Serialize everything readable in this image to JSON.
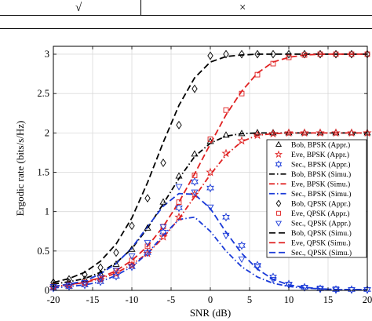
{
  "table_fragment": {
    "cells": [
      "√",
      "×"
    ]
  },
  "chart_data": {
    "type": "line",
    "title": "",
    "xlabel": "SNR (dB)",
    "ylabel": "Ergodic rate (bits/s/Hz)",
    "xlim": [
      -20,
      20
    ],
    "ylim": [
      0,
      3.1
    ],
    "xticks": [
      -20,
      -15,
      -10,
      -5,
      0,
      5,
      10,
      15,
      20
    ],
    "yticks": [
      0,
      0.5,
      1,
      1.5,
      2,
      2.5,
      3
    ],
    "xtick_labels": [
      "-20",
      "-15",
      "-10",
      "-5",
      "0",
      "5",
      "10",
      "15",
      "20"
    ],
    "ytick_labels": [
      "0",
      "0.5",
      "1",
      "1.5",
      "2",
      "2.5",
      "3"
    ],
    "grid": true,
    "legend_position": "right",
    "series": [
      {
        "name": "Bob, BPSK (Appr.)",
        "kind": "marker",
        "marker": "triangle-up",
        "color": "#000000",
        "x": [
          -20,
          -18,
          -16,
          -14,
          -12,
          -10,
          -8,
          -6,
          -4,
          -2,
          0,
          2,
          4,
          6,
          8,
          10,
          12,
          14,
          16,
          18,
          20
        ],
        "y": [
          0.07,
          0.1,
          0.14,
          0.21,
          0.33,
          0.52,
          0.79,
          1.12,
          1.45,
          1.73,
          1.89,
          1.97,
          1.99,
          2.0,
          2.0,
          2.0,
          2.0,
          2.0,
          2.0,
          2.0,
          2.0
        ]
      },
      {
        "name": "Eve, BPSK (Appr.)",
        "kind": "marker",
        "marker": "star",
        "color": "#e02020",
        "x": [
          -20,
          -18,
          -16,
          -14,
          -12,
          -10,
          -8,
          -6,
          -4,
          -2,
          0,
          2,
          4,
          6,
          8,
          10,
          12,
          14,
          16,
          18,
          20
        ],
        "y": [
          0.04,
          0.06,
          0.09,
          0.14,
          0.21,
          0.32,
          0.47,
          0.68,
          0.93,
          1.22,
          1.5,
          1.74,
          1.9,
          1.97,
          1.99,
          2.0,
          2.0,
          2.0,
          2.0,
          2.0,
          2.0
        ]
      },
      {
        "name": "Sec., BPSK (Appr.)",
        "kind": "marker",
        "marker": "hexagram",
        "color": "#1a3ad8",
        "x": [
          -20,
          -18,
          -16,
          -14,
          -12,
          -10,
          -8,
          -6,
          -4,
          -2,
          0,
          2,
          4,
          6,
          8,
          10,
          12,
          14,
          16,
          18,
          20
        ],
        "y": [
          0.03,
          0.05,
          0.07,
          0.11,
          0.18,
          0.3,
          0.48,
          0.74,
          1.05,
          1.38,
          1.3,
          0.93,
          0.57,
          0.32,
          0.17,
          0.08,
          0.04,
          0.02,
          0.01,
          0.01,
          0.01
        ]
      },
      {
        "name": "Bob, BPSK (Simu.)",
        "kind": "line",
        "dash": "7,3,1.5,3",
        "color": "#000000",
        "x": [
          -20,
          -18,
          -16,
          -14,
          -12,
          -10,
          -8,
          -6,
          -4,
          -2,
          0,
          2,
          4,
          6,
          8,
          10,
          12,
          14,
          16,
          18,
          20
        ],
        "y": [
          0.08,
          0.11,
          0.15,
          0.23,
          0.35,
          0.53,
          0.79,
          1.1,
          1.42,
          1.7,
          1.87,
          1.96,
          1.99,
          2.0,
          2.0,
          2.0,
          2.0,
          2.0,
          2.0,
          2.0,
          2.0
        ]
      },
      {
        "name": "Eve, BPSK (Simu.)",
        "kind": "line",
        "dash": "7,3,1.5,3",
        "color": "#e02020",
        "x": [
          -20,
          -18,
          -16,
          -14,
          -12,
          -10,
          -8,
          -6,
          -4,
          -2,
          0,
          2,
          4,
          6,
          8,
          10,
          12,
          14,
          16,
          18,
          20
        ],
        "y": [
          0.05,
          0.07,
          0.1,
          0.15,
          0.22,
          0.33,
          0.47,
          0.67,
          0.91,
          1.19,
          1.47,
          1.72,
          1.89,
          1.97,
          1.99,
          2.0,
          2.0,
          2.0,
          2.0,
          2.0,
          2.0
        ]
      },
      {
        "name": "Sec., BPSK (Simu.)",
        "kind": "line",
        "dash": "7,3,1.5,3",
        "color": "#1a3ad8",
        "x": [
          -20,
          -18,
          -16,
          -14,
          -12,
          -10,
          -8,
          -6,
          -4,
          -2,
          0,
          2,
          4,
          6,
          8,
          10,
          12,
          14,
          16,
          18,
          20
        ],
        "y": [
          0.03,
          0.05,
          0.07,
          0.11,
          0.19,
          0.3,
          0.47,
          0.7,
          0.9,
          0.93,
          0.75,
          0.5,
          0.3,
          0.17,
          0.09,
          0.05,
          0.03,
          0.02,
          0.01,
          0.01,
          0.01
        ]
      },
      {
        "name": "Bob, QPSK (Appr.)",
        "kind": "marker",
        "marker": "diamond",
        "color": "#000000",
        "x": [
          -20,
          -18,
          -16,
          -14,
          -12,
          -10,
          -8,
          -6,
          -4,
          -2,
          0,
          2,
          4,
          6,
          8,
          10,
          12,
          14,
          16,
          18,
          20
        ],
        "y": [
          0.1,
          0.14,
          0.2,
          0.29,
          0.48,
          0.82,
          1.17,
          1.62,
          2.1,
          2.56,
          2.98,
          3.0,
          3.0,
          3.0,
          3.0,
          3.0,
          3.0,
          3.0,
          3.0,
          3.0,
          3.0
        ]
      },
      {
        "name": "Eve, QPSK (Appr.)",
        "kind": "marker",
        "marker": "square",
        "color": "#e02020",
        "x": [
          -20,
          -18,
          -16,
          -14,
          -12,
          -10,
          -8,
          -6,
          -4,
          -2,
          0,
          2,
          4,
          6,
          8,
          10,
          12,
          14,
          16,
          18,
          20
        ],
        "y": [
          0.05,
          0.07,
          0.1,
          0.16,
          0.25,
          0.38,
          0.56,
          0.81,
          1.12,
          1.46,
          1.92,
          2.29,
          2.5,
          2.74,
          2.88,
          2.96,
          2.99,
          3.0,
          3.0,
          3.0,
          3.0
        ]
      },
      {
        "name": "Sec., QPSK (Appr.)",
        "kind": "marker",
        "marker": "triangle-down",
        "color": "#1a3ad8",
        "x": [
          -20,
          -18,
          -16,
          -14,
          -12,
          -10,
          -8,
          -6,
          -4,
          -2,
          0,
          2,
          4,
          6,
          8,
          10,
          12,
          14,
          16,
          18,
          20
        ],
        "y": [
          0.05,
          0.07,
          0.1,
          0.16,
          0.26,
          0.44,
          0.61,
          0.81,
          1.32,
          1.25,
          1.06,
          0.7,
          0.4,
          0.3,
          0.14,
          0.07,
          0.04,
          0.03,
          0.02,
          0.01,
          0.01
        ]
      },
      {
        "name": "Bob, QPSK (Simu.)",
        "kind": "line",
        "dash": "8,4",
        "color": "#000000",
        "x": [
          -20,
          -18,
          -16,
          -14,
          -12,
          -10,
          -8,
          -6,
          -4,
          -2,
          0,
          2,
          4,
          6,
          8,
          10,
          12,
          14,
          16,
          18,
          20
        ],
        "y": [
          0.1,
          0.15,
          0.23,
          0.37,
          0.59,
          0.92,
          1.37,
          1.88,
          2.35,
          2.7,
          2.9,
          2.97,
          2.99,
          3.0,
          3.0,
          3.0,
          3.0,
          3.0,
          3.0,
          3.0,
          3.0
        ]
      },
      {
        "name": "Eve, QPSK (Simu.)",
        "kind": "line",
        "dash": "8,4",
        "color": "#e02020",
        "x": [
          -20,
          -18,
          -16,
          -14,
          -12,
          -10,
          -8,
          -6,
          -4,
          -2,
          0,
          2,
          4,
          6,
          8,
          10,
          12,
          14,
          16,
          18,
          20
        ],
        "y": [
          0.05,
          0.07,
          0.11,
          0.16,
          0.25,
          0.38,
          0.56,
          0.81,
          1.12,
          1.48,
          1.86,
          2.23,
          2.53,
          2.76,
          2.9,
          2.96,
          2.99,
          3.0,
          3.0,
          3.0,
          3.0
        ]
      },
      {
        "name": "Sec., QPSK (Simu.)",
        "kind": "line",
        "dash": "8,4",
        "color": "#1a3ad8",
        "x": [
          -20,
          -18,
          -16,
          -14,
          -12,
          -10,
          -8,
          -6,
          -4,
          -2,
          0,
          2,
          4,
          6,
          8,
          10,
          12,
          14,
          16,
          18,
          20
        ],
        "y": [
          0.05,
          0.08,
          0.12,
          0.21,
          0.34,
          0.54,
          0.81,
          1.07,
          1.23,
          1.22,
          1.04,
          0.74,
          0.47,
          0.27,
          0.14,
          0.07,
          0.04,
          0.02,
          0.01,
          0.01,
          0.01
        ]
      }
    ]
  }
}
